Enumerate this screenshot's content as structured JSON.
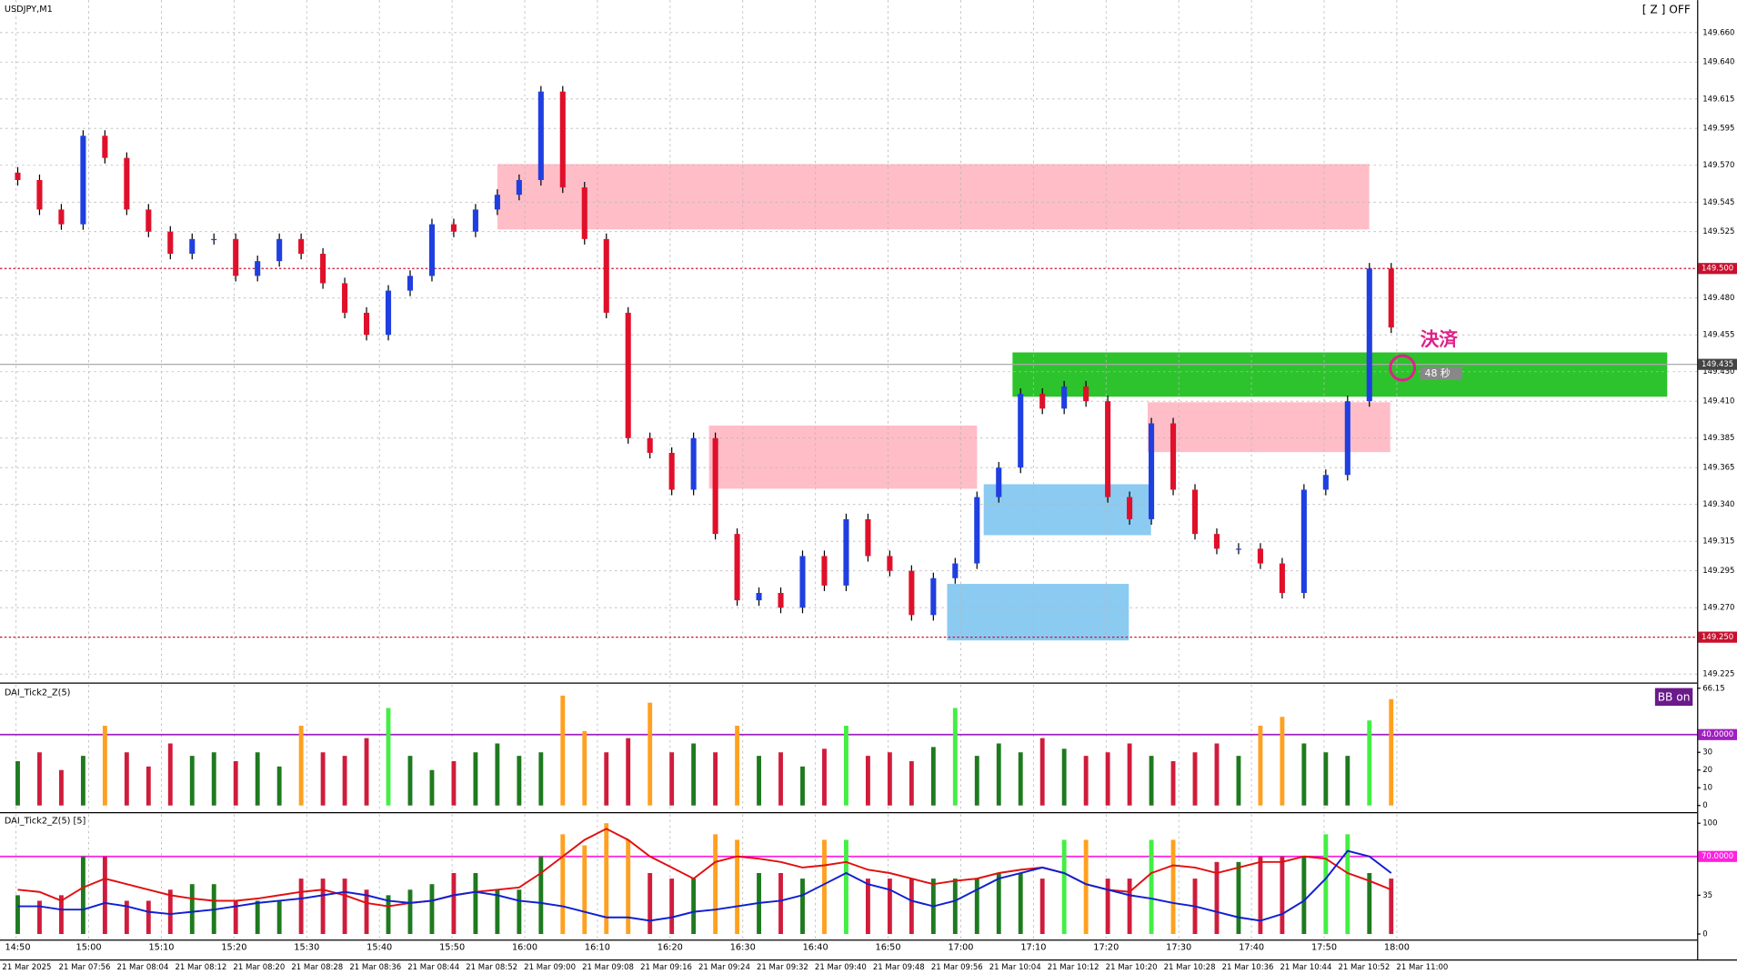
{
  "header": {
    "symbol": "USDJPY,M1",
    "zoom_status": "[ Z ] OFF",
    "close_label": "決済",
    "timer": "48 秒",
    "bb_button": "BB on"
  },
  "time_axis": {
    "time_labels": [
      "14:50",
      "15:00",
      "15:10",
      "15:20",
      "15:30",
      "15:40",
      "15:50",
      "16:00",
      "16:10",
      "16:20",
      "16:30",
      "16:40",
      "16:50",
      "17:00",
      "17:10",
      "17:20",
      "17:30",
      "17:40",
      "17:50",
      "18:00"
    ],
    "date_labels": [
      "21 Mar 2025",
      "21 Mar 07:56",
      "21 Mar 08:04",
      "21 Mar 08:12",
      "21 Mar 08:20",
      "21 Mar 08:28",
      "21 Mar 08:36",
      "21 Mar 08:44",
      "21 Mar 08:52",
      "21 Mar 09:00",
      "21 Mar 09:08",
      "21 Mar 09:16",
      "21 Mar 09:24",
      "21 Mar 09:32",
      "21 Mar 09:40",
      "21 Mar 09:48",
      "21 Mar 09:56",
      "21 Mar 10:04",
      "21 Mar 10:12",
      "21 Mar 10:20",
      "21 Mar 10:28",
      "21 Mar 10:36",
      "21 Mar 10:44",
      "21 Mar 10:52",
      "21 Mar 11:00"
    ]
  },
  "chart_data": [
    {
      "type": "candlestick",
      "up_color": "#1f3fe0",
      "down_color": "#e0102a",
      "values": [
        149.56,
        149.54,
        149.53,
        149.59,
        149.575,
        149.54,
        149.525,
        149.51,
        149.52,
        149.52,
        149.495,
        149.505,
        149.52,
        149.51,
        149.49,
        149.47,
        149.455,
        149.485,
        149.495,
        149.53,
        149.525,
        149.54,
        149.55,
        149.56,
        149.62,
        149.555,
        149.52,
        149.47,
        149.385,
        149.375,
        149.35,
        149.385,
        149.32,
        149.275,
        149.28,
        149.27,
        149.305,
        149.285,
        149.33,
        149.305,
        149.295,
        149.265,
        149.29,
        149.3,
        149.345,
        149.365,
        149.415,
        149.405,
        149.42,
        149.41,
        149.345,
        149.33,
        149.395,
        149.35,
        149.32,
        149.31,
        149.31,
        149.3,
        149.28,
        149.35,
        149.36,
        149.41,
        149.5,
        149.46
      ],
      "ylim": [
        149.22,
        149.682
      ],
      "yticks": [
        {
          "value": 149.66,
          "label": "149.660"
        },
        {
          "value": 149.64,
          "label": "149.640"
        },
        {
          "value": 149.615,
          "label": "149.615"
        },
        {
          "value": 149.595,
          "label": "149.595"
        },
        {
          "value": 149.57,
          "label": "149.570"
        },
        {
          "value": 149.545,
          "label": "149.545"
        },
        {
          "value": 149.525,
          "label": "149.525"
        },
        {
          "value": 149.48,
          "label": "149.480"
        },
        {
          "value": 149.455,
          "label": "149.455"
        },
        {
          "value": 149.43,
          "label": "149.430"
        },
        {
          "value": 149.41,
          "label": "149.410"
        },
        {
          "value": 149.385,
          "label": "149.385"
        },
        {
          "value": 149.365,
          "label": "149.365"
        },
        {
          "value": 149.34,
          "label": "149.340"
        },
        {
          "value": 149.315,
          "label": "149.315"
        },
        {
          "value": 149.295,
          "label": "149.295"
        },
        {
          "value": 149.27,
          "label": "149.270"
        },
        {
          "value": 149.225,
          "label": "149.225"
        }
      ],
      "level_lines": [
        {
          "value": 149.5,
          "label": "149.500",
          "color": "#c8102e"
        },
        {
          "value": 149.25,
          "label": "149.250",
          "color": "#c8102e"
        }
      ],
      "current_price": {
        "value": 149.435,
        "label": "149.435"
      },
      "grid": true
    },
    {
      "type": "bar",
      "title": "DAI_Tick2_Z(5)",
      "up_color": "#1e7a1e",
      "down_color": "#d01c3c",
      "high_up_color": "#44ee44",
      "high_down_color": "#ffa020",
      "threshold_color": "#a020c0",
      "values": [
        25,
        30,
        20,
        28,
        45,
        30,
        22,
        35,
        28,
        30,
        25,
        30,
        22,
        45,
        30,
        28,
        38,
        55,
        28,
        20,
        25,
        30,
        35,
        28,
        30,
        62,
        42,
        30,
        38,
        58,
        30,
        35,
        30,
        45,
        28,
        30,
        22,
        32,
        45,
        28,
        30,
        25,
        33,
        55,
        28,
        35,
        30,
        38,
        32,
        28,
        30,
        35,
        28,
        25,
        30,
        35,
        28,
        45,
        50,
        35,
        30,
        28,
        48,
        60
      ],
      "ylim": [
        0,
        67
      ],
      "yticks": [
        0,
        10,
        20,
        30,
        {
          "value": 40,
          "label": "40.0000"
        },
        66.15
      ],
      "threshold": 40
    },
    {
      "type": "bar-line",
      "title": "DAI_Tick2_Z(5) [5]",
      "up_color": "#1e7a1e",
      "down_color": "#d01c3c",
      "high_up_color": "#44ee44",
      "high_down_color": "#ffa020",
      "threshold_color": "#ff20e0",
      "values": [
        35,
        30,
        35,
        70,
        70,
        30,
        30,
        40,
        45,
        45,
        30,
        30,
        30,
        50,
        50,
        50,
        40,
        35,
        40,
        45,
        55,
        55,
        40,
        40,
        70,
        90,
        80,
        100,
        85,
        55,
        50,
        50,
        90,
        85,
        55,
        55,
        50,
        85,
        85,
        50,
        50,
        50,
        50,
        50,
        50,
        55,
        55,
        50,
        85,
        85,
        50,
        50,
        85,
        85,
        50,
        65,
        65,
        70,
        70,
        70,
        90,
        90,
        55,
        50
      ],
      "series": [
        {
          "color": "#e01010",
          "values": [
            40,
            38,
            30,
            42,
            50,
            45,
            40,
            35,
            32,
            30,
            30,
            32,
            35,
            38,
            40,
            35,
            28,
            25,
            28,
            30,
            35,
            38,
            40,
            42,
            55,
            70,
            85,
            95,
            85,
            70,
            60,
            50,
            65,
            70,
            68,
            65,
            60,
            62,
            65,
            58,
            55,
            50,
            45,
            48,
            50,
            55,
            58,
            60,
            55,
            45,
            40,
            38,
            55,
            62,
            60,
            55,
            60,
            65,
            65,
            70,
            68,
            55,
            48,
            40
          ]
        },
        {
          "color": "#1020d0",
          "values": [
            25,
            25,
            22,
            22,
            28,
            25,
            20,
            18,
            20,
            22,
            25,
            28,
            30,
            32,
            35,
            38,
            35,
            30,
            28,
            30,
            35,
            38,
            35,
            30,
            28,
            25,
            20,
            15,
            15,
            12,
            15,
            20,
            22,
            25,
            28,
            30,
            35,
            45,
            55,
            45,
            40,
            30,
            25,
            30,
            40,
            50,
            55,
            60,
            55,
            45,
            40,
            35,
            32,
            28,
            25,
            20,
            15,
            12,
            18,
            30,
            50,
            75,
            70,
            55
          ]
        }
      ],
      "ylim": [
        0,
        105
      ],
      "yticks": [
        0,
        35,
        {
          "value": 70,
          "label": "70.0000"
        },
        100
      ],
      "threshold": 70
    }
  ]
}
